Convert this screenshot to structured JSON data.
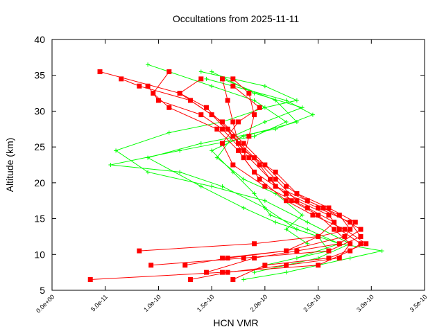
{
  "chart_data": {
    "type": "line",
    "title": "Occultations from 2025-11-11",
    "xlabel": "HCN VMR",
    "ylabel": "Altitude (km)",
    "xlim": [
      0,
      3.5e-10
    ],
    "ylim": [
      5,
      40
    ],
    "x_ticks": [
      0,
      5e-11,
      1e-10,
      1.5e-10,
      2e-10,
      2.5e-10,
      3e-10,
      3.5e-10
    ],
    "x_tick_labels": [
      "0.0e+00",
      "5.0e-11",
      "1.0e-10",
      "1.5e-10",
      "2.0e-10",
      "2.5e-10",
      "3.0e-10",
      "3.5e-10"
    ],
    "y_ticks": [
      5,
      10,
      15,
      20,
      25,
      30,
      35,
      40
    ],
    "y_tick_labels": [
      "5",
      "10",
      "15",
      "20",
      "25",
      "30",
      "35",
      "40"
    ],
    "grid": false,
    "legend": "none",
    "colors": {
      "squares": "#ff0000",
      "plus": "#00ff00"
    },
    "series": [
      {
        "marker": "square",
        "color": "#ff0000",
        "points": [
          [
            3.6e-11,
            6.5
          ],
          [
            1.6e-10,
            7.5
          ],
          [
            2.5e-10,
            8.5
          ],
          [
            2.8e-10,
            10.5
          ],
          [
            2.9e-10,
            11.5
          ],
          [
            2.7e-10,
            13.5
          ],
          [
            2.6e-10,
            15.5
          ],
          [
            2.3e-10,
            17.5
          ],
          [
            2.1e-10,
            20.5
          ],
          [
            1.9e-10,
            23.5
          ],
          [
            1.7e-10,
            26.5
          ],
          [
            1.5e-10,
            29.5
          ],
          [
            1.2e-10,
            32.5
          ],
          [
            4.5e-11,
            35.5
          ]
        ]
      },
      {
        "marker": "square",
        "color": "#ff0000",
        "points": [
          [
            8.2e-11,
            10.5
          ],
          [
            1.9e-10,
            11.5
          ],
          [
            2.5e-10,
            12.5
          ],
          [
            2.8e-10,
            13.5
          ],
          [
            2.7e-10,
            15.5
          ],
          [
            2.4e-10,
            17.5
          ],
          [
            2.2e-10,
            19.5
          ],
          [
            2e-10,
            22.5
          ],
          [
            1.8e-10,
            25.5
          ],
          [
            1.6e-10,
            28.5
          ],
          [
            1.3e-10,
            31.5
          ],
          [
            8.2e-11,
            33.5
          ],
          [
            6.5e-11,
            34.5
          ]
        ]
      },
      {
        "marker": "square",
        "color": "#ff0000",
        "points": [
          [
            9.3e-11,
            8.5
          ],
          [
            1.8e-10,
            9.5
          ],
          [
            2.6e-10,
            10.5
          ],
          [
            2.9e-10,
            12.5
          ],
          [
            2.8e-10,
            14.5
          ],
          [
            2.5e-10,
            16.5
          ],
          [
            2.2e-10,
            18.5
          ],
          [
            1.9e-10,
            21.5
          ],
          [
            1.75e-10,
            24.5
          ],
          [
            1.55e-10,
            27.5
          ],
          [
            1.1e-10,
            30.5
          ],
          [
            9.5e-11,
            32.5
          ],
          [
            1.1e-10,
            35.5
          ]
        ]
      },
      {
        "marker": "square",
        "color": "#ff0000",
        "points": [
          [
            1.3e-10,
            6.5
          ],
          [
            1.65e-10,
            7.5
          ],
          [
            2.2e-10,
            8.5
          ],
          [
            2.7e-10,
            9.5
          ],
          [
            2.8e-10,
            11.5
          ],
          [
            2.65e-10,
            13.5
          ],
          [
            2.5e-10,
            15.5
          ],
          [
            2.25e-10,
            17.5
          ],
          [
            2.05e-10,
            20.5
          ],
          [
            1.85e-10,
            23.5
          ],
          [
            1.6e-10,
            27.5
          ],
          [
            1.4e-10,
            29.5
          ],
          [
            1e-10,
            31.5
          ],
          [
            9e-11,
            33.5
          ]
        ]
      },
      {
        "marker": "square",
        "color": "#ff0000",
        "points": [
          [
            1.25e-10,
            8.5
          ],
          [
            1.65e-10,
            9.5
          ],
          [
            2.2e-10,
            10.5
          ],
          [
            2.75e-10,
            12.5
          ],
          [
            2.85e-10,
            14.5
          ],
          [
            2.6e-10,
            16.5
          ],
          [
            2.3e-10,
            18.5
          ],
          [
            2.1e-10,
            21.5
          ],
          [
            1.8e-10,
            24.5
          ],
          [
            1.65e-10,
            27.5
          ],
          [
            1.45e-10,
            30.5
          ],
          [
            1.2e-10,
            32.5
          ],
          [
            1.4e-10,
            34.5
          ]
        ]
      },
      {
        "marker": "square",
        "color": "#ff0000",
        "points": [
          [
            1.45e-10,
            7.5
          ],
          [
            1.9e-10,
            9.5
          ],
          [
            2.3e-10,
            10.5
          ],
          [
            2.7e-10,
            11.5
          ],
          [
            2.9e-10,
            13.5
          ],
          [
            2.55e-10,
            16.5
          ],
          [
            2.1e-10,
            19.5
          ],
          [
            1.95e-10,
            22.5
          ],
          [
            1.75e-10,
            25.5
          ],
          [
            1.7e-10,
            28.5
          ],
          [
            1.65e-10,
            31.5
          ],
          [
            1.6e-10,
            34.5
          ]
        ]
      },
      {
        "marker": "square",
        "color": "#ff0000",
        "points": [
          [
            1.7e-10,
            6.5
          ],
          [
            2e-10,
            8.5
          ],
          [
            2.6e-10,
            9.5
          ],
          [
            2.95e-10,
            11.5
          ],
          [
            2.75e-10,
            13.5
          ],
          [
            2.45e-10,
            15.5
          ],
          [
            2.2e-10,
            17.5
          ],
          [
            1.95e-10,
            20.5
          ],
          [
            1.8e-10,
            23.5
          ],
          [
            1.85e-10,
            26.5
          ],
          [
            1.9e-10,
            29.5
          ],
          [
            1.85e-10,
            32.5
          ],
          [
            1.7e-10,
            34.5
          ]
        ]
      },
      {
        "marker": "square",
        "color": "#ff0000",
        "points": [
          [
            1.6e-10,
            9.5
          ],
          [
            2.2e-10,
            10.5
          ],
          [
            2.5e-10,
            12.5
          ],
          [
            2.65e-10,
            14.5
          ],
          [
            2.4e-10,
            16.5
          ],
          [
            2e-10,
            19.5
          ],
          [
            1.7e-10,
            22.5
          ],
          [
            1.6e-10,
            25.5
          ],
          [
            1.75e-10,
            28.5
          ],
          [
            1.95e-10,
            30.5
          ],
          [
            1.7e-10,
            33.5
          ]
        ]
      },
      {
        "marker": "plus",
        "color": "#00ff00",
        "points": [
          [
            1.8e-10,
            6.5
          ],
          [
            2.2e-10,
            7.5
          ],
          [
            2.8e-10,
            9.5
          ],
          [
            3.1e-10,
            10.5
          ],
          [
            2.7e-10,
            11.5
          ],
          [
            2.3e-10,
            13.5
          ],
          [
            2e-10,
            16.5
          ],
          [
            1.6e-10,
            19.5
          ],
          [
            1.2e-10,
            21.5
          ],
          [
            5.5e-11,
            22.5
          ],
          [
            1.2e-10,
            24.5
          ],
          [
            1.9e-10,
            26.5
          ],
          [
            2.2e-10,
            28.5
          ],
          [
            1.9e-10,
            31.5
          ],
          [
            1.5e-10,
            33.5
          ],
          [
            9e-11,
            36.5
          ]
        ]
      },
      {
        "marker": "plus",
        "color": "#00ff00",
        "points": [
          [
            1.9e-10,
            7.5
          ],
          [
            2.5e-10,
            9.5
          ],
          [
            2.8e-10,
            11.5
          ],
          [
            2.4e-10,
            14.5
          ],
          [
            2e-10,
            17.5
          ],
          [
            1.5e-10,
            19.5
          ],
          [
            9e-11,
            21.5
          ],
          [
            6e-11,
            24.5
          ],
          [
            1.1e-10,
            27.0
          ],
          [
            1.6e-10,
            28.5
          ],
          [
            2e-10,
            30.5
          ],
          [
            2.3e-10,
            31.5
          ],
          [
            2e-10,
            33.5
          ],
          [
            1.4e-10,
            35.5
          ]
        ]
      },
      {
        "marker": "plus",
        "color": "#00ff00",
        "points": [
          [
            2e-10,
            8.5
          ],
          [
            2.6e-10,
            10.5
          ],
          [
            2.5e-10,
            12.5
          ],
          [
            2.1e-10,
            14.5
          ],
          [
            1.8e-10,
            16.5
          ],
          [
            1.4e-10,
            19.5
          ],
          [
            9e-11,
            23.5
          ],
          [
            1.4e-10,
            25.5
          ],
          [
            2.1e-10,
            27.5
          ],
          [
            2.45e-10,
            29.5
          ],
          [
            2.2e-10,
            31.5
          ],
          [
            1.7e-10,
            33.5
          ],
          [
            1.45e-10,
            34.5
          ]
        ]
      },
      {
        "marker": "plus",
        "color": "#00ff00",
        "points": [
          [
            2.3e-10,
            9.5
          ],
          [
            2.7e-10,
            11.5
          ],
          [
            2.4e-10,
            13.5
          ],
          [
            2.05e-10,
            15.5
          ],
          [
            1.9e-10,
            18.5
          ],
          [
            1.7e-10,
            21.5
          ],
          [
            1.5e-10,
            24.5
          ],
          [
            1.8e-10,
            26.5
          ],
          [
            2.3e-10,
            28.5
          ],
          [
            2.1e-10,
            31.5
          ],
          [
            1.6e-10,
            34.5
          ]
        ]
      },
      {
        "marker": "plus",
        "color": "#00ff00",
        "points": [
          [
            2.4e-10,
            11.5
          ],
          [
            2.2e-10,
            13.5
          ],
          [
            2.35e-10,
            15.5
          ],
          [
            2.1e-10,
            18.5
          ],
          [
            1.8e-10,
            20.5
          ],
          [
            1.55e-10,
            23.5
          ],
          [
            1.7e-10,
            26.5
          ],
          [
            2e-10,
            28.5
          ],
          [
            2.35e-10,
            30.5
          ],
          [
            1.9e-10,
            32.5
          ],
          [
            1.5e-10,
            35.5
          ]
        ]
      }
    ]
  }
}
